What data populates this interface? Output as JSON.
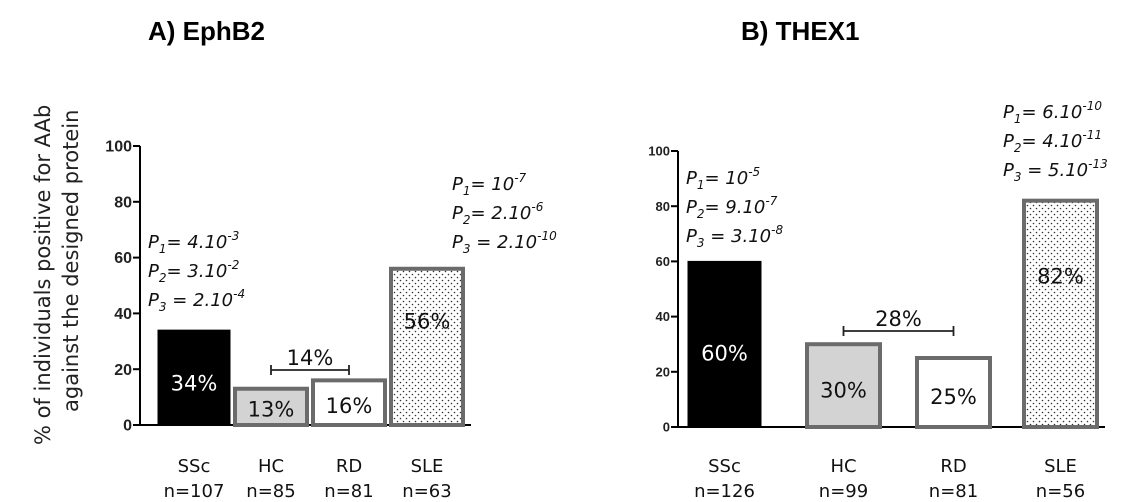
{
  "y_label_line1": "% of individuals positive for AAb",
  "y_label_line2": "against the designed protein",
  "colors": {
    "solid": "#000000",
    "light_gray": "#d3d3d3",
    "white": "#ffffff",
    "outline": "#6b6b6b",
    "dots": "#333333"
  },
  "chart_data": [
    {
      "type": "bar",
      "title": "A) EphB2",
      "ylim": [
        0,
        100
      ],
      "yticks": [
        "0",
        "20",
        "40",
        "60",
        "80",
        "100"
      ],
      "categories": [
        "SSc",
        "HC",
        "RD",
        "SLE"
      ],
      "sample_sizes": [
        "n=107",
        "n=85",
        "n=81",
        "n=63"
      ],
      "values": [
        34,
        13,
        16,
        56
      ],
      "value_labels": [
        "34%",
        "13%",
        "16%",
        "56%"
      ],
      "fills": [
        "solid",
        "light_gray",
        "white",
        "dotted"
      ],
      "bracket": {
        "from": "HC",
        "to": "RD",
        "label": "14%",
        "value": 14
      },
      "annotations": [
        {
          "category": "SSc",
          "lines": [
            [
              "P",
              "1",
              "= 4.10",
              "-3"
            ],
            [
              "P",
              "2",
              "= 3.10",
              "-2"
            ],
            [
              "P",
              "3",
              " = 2.10",
              "-4"
            ]
          ]
        },
        {
          "category": "SLE",
          "lines": [
            [
              "P",
              "1",
              "= 10",
              "-7"
            ],
            [
              "P",
              "2",
              "= 2.10",
              "-6"
            ],
            [
              "P",
              "3",
              " = 2.10",
              "-10"
            ]
          ]
        }
      ]
    },
    {
      "type": "bar",
      "title": "B) THEX1",
      "ylim": [
        0,
        100
      ],
      "yticks": [
        "0",
        "20",
        "40",
        "60",
        "80",
        "100"
      ],
      "categories": [
        "SSc",
        "HC",
        "RD",
        "SLE"
      ],
      "sample_sizes": [
        "n=126",
        "n=99",
        "n=81",
        "n=56"
      ],
      "values": [
        60,
        30,
        25,
        82
      ],
      "value_labels": [
        "60%",
        "30%",
        "25%",
        "82%"
      ],
      "fills": [
        "solid",
        "light_gray",
        "white",
        "dotted"
      ],
      "bracket": {
        "from": "HC",
        "to": "RD",
        "label": "28%",
        "value": 28
      },
      "annotations": [
        {
          "category": "SSc",
          "lines": [
            [
              "P",
              "1",
              "= 10",
              "-5"
            ],
            [
              "P",
              "2",
              "= 9.10",
              "-7"
            ],
            [
              "P",
              "3",
              " = 3.10",
              "-8"
            ]
          ]
        },
        {
          "category": "SLE",
          "lines": [
            [
              "P",
              "1",
              "= 6.10",
              "-10"
            ],
            [
              "P",
              "2",
              "= 4.10",
              "-11"
            ],
            [
              "P",
              "3",
              " = 5.10",
              "-13"
            ]
          ]
        }
      ]
    }
  ]
}
